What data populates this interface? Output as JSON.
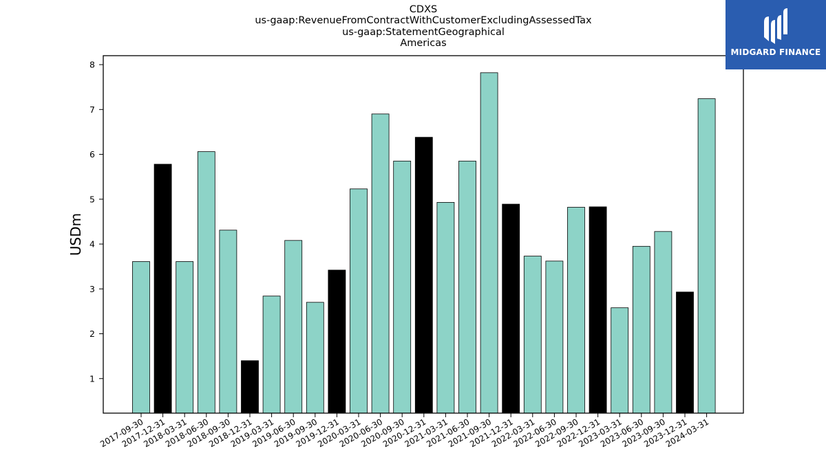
{
  "titles": {
    "line1": "CDXS",
    "line2": "us-gaap:RevenueFromContractWithCustomerExcludingAssessedTax",
    "line3": "us-gaap:StatementGeographical",
    "line4": "Americas"
  },
  "logo": {
    "text": "MIDGARD FINANCE",
    "icon": "midgard-logo-icon"
  },
  "colors": {
    "default_bar": "#8dd3c7",
    "q4_bar": "#000000",
    "edge": "#000000"
  },
  "chart_data": {
    "type": "bar",
    "title": "CDXS\nus-gaap:RevenueFromContractWithCustomerExcludingAssessedTax\nus-gaap:StatementGeographical\nAmericas",
    "ylabel": "USDm",
    "xlabel": "",
    "ylim": [
      0.23,
      8.2
    ],
    "yticks": [
      1,
      2,
      3,
      4,
      5,
      6,
      7,
      8
    ],
    "grid": false,
    "categories": [
      "2017-09-30",
      "2017-12-31",
      "2018-03-31",
      "2018-06-30",
      "2018-09-30",
      "2018-12-31",
      "2019-03-31",
      "2019-06-30",
      "2019-09-30",
      "2019-12-31",
      "2020-03-31",
      "2020-06-30",
      "2020-09-30",
      "2020-12-31",
      "2021-03-31",
      "2021-06-30",
      "2021-09-30",
      "2021-12-31",
      "2022-03-31",
      "2022-06-30",
      "2022-09-30",
      "2022-12-31",
      "2023-03-31",
      "2023-06-30",
      "2023-09-30",
      "2023-12-31",
      "2024-03-31"
    ],
    "values": [
      3.61,
      5.78,
      3.61,
      6.06,
      4.31,
      1.4,
      2.84,
      4.08,
      2.7,
      3.42,
      5.23,
      6.9,
      5.85,
      6.38,
      4.93,
      5.85,
      7.82,
      4.89,
      3.73,
      3.62,
      4.82,
      4.83,
      2.58,
      3.95,
      4.28,
      2.93,
      7.24
    ]
  }
}
